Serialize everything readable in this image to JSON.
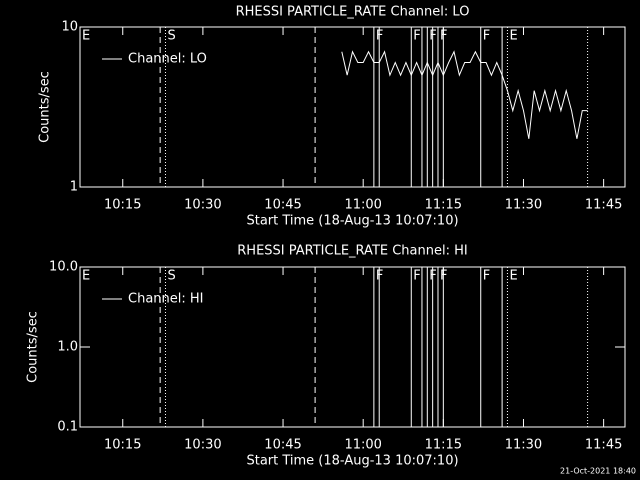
{
  "footer": "21-Oct-2021 18:40",
  "chart_data": [
    {
      "type": "line",
      "title": "RHESSI PARTICLE_RATE Channel: LO",
      "x_label": "Start Time (18-Aug-13 10:07:10)",
      "y_label": "Counts/sec",
      "log_y": true,
      "legend": "top-left",
      "xlim": [
        "10:07",
        "11:49"
      ],
      "xticks": [
        "10:15",
        "10:30",
        "10:45",
        "11:00",
        "11:15",
        "11:30",
        "11:45"
      ],
      "ylim": [
        1,
        10
      ],
      "yticks": [
        1,
        10
      ],
      "x": [
        "10:56",
        "10:57",
        "10:58",
        "10:59",
        "11:00",
        "11:01",
        "11:02",
        "11:03",
        "11:04",
        "11:05",
        "11:06",
        "11:07",
        "11:08",
        "11:09",
        "11:10",
        "11:11",
        "11:12",
        "11:13",
        "11:14",
        "11:15",
        "11:16",
        "11:17",
        "11:18",
        "11:19",
        "11:20",
        "11:21",
        "11:22",
        "11:23",
        "11:24",
        "11:25",
        "11:26",
        "11:27",
        "11:28",
        "11:29",
        "11:30",
        "11:31",
        "11:32",
        "11:33",
        "11:34",
        "11:35",
        "11:36",
        "11:37",
        "11:38",
        "11:39",
        "11:40",
        "11:41",
        "11:42"
      ],
      "series": [
        {
          "name": "Channel: LO",
          "color": "#ffffff",
          "values": [
            7,
            5,
            7,
            6,
            6,
            7,
            6,
            6,
            7,
            5,
            6,
            5,
            6,
            5,
            6,
            5,
            6,
            5,
            6,
            5,
            6,
            7,
            5,
            6,
            6,
            7,
            6,
            6,
            5,
            6,
            5,
            4,
            3,
            4,
            3,
            2,
            4,
            3,
            4,
            3,
            4,
            3,
            4,
            3,
            2,
            3,
            3
          ]
        }
      ],
      "events": [
        {
          "time": "10:07",
          "style": "none",
          "label": "E"
        },
        {
          "time": "10:22",
          "style": "dashed"
        },
        {
          "time": "10:23",
          "style": "dotted",
          "label": "S"
        },
        {
          "time": "10:51",
          "style": "dashed"
        },
        {
          "time": "11:02",
          "style": "solid",
          "label": "F"
        },
        {
          "time": "11:03",
          "style": "solid"
        },
        {
          "time": "11:09",
          "style": "solid",
          "label": "F"
        },
        {
          "time": "11:11",
          "style": "solid"
        },
        {
          "time": "11:12",
          "style": "solid",
          "label": "F"
        },
        {
          "time": "11:13",
          "style": "solid"
        },
        {
          "time": "11:14",
          "style": "solid",
          "label": "F"
        },
        {
          "time": "11:15",
          "style": "solid"
        },
        {
          "time": "11:22",
          "style": "solid",
          "label": "F"
        },
        {
          "time": "11:26",
          "style": "solid"
        },
        {
          "time": "11:27",
          "style": "dotted",
          "label": "E"
        },
        {
          "time": "11:42",
          "style": "dotted"
        }
      ]
    },
    {
      "type": "line",
      "title": "RHESSI PARTICLE_RATE Channel: HI",
      "x_label": "Start Time (18-Aug-13 10:07:10)",
      "y_label": "Counts/sec",
      "log_y": true,
      "legend": "top-left",
      "xlim": [
        "10:07",
        "11:49"
      ],
      "xticks": [
        "10:15",
        "10:30",
        "10:45",
        "11:00",
        "11:15",
        "11:30",
        "11:45"
      ],
      "ylim": [
        0.1,
        10
      ],
      "yticks": [
        0.1,
        {
          "value": 1,
          "label": "1.0"
        },
        {
          "value": 10,
          "label": "10.0"
        }
      ],
      "x": [],
      "series": [
        {
          "name": "Channel: HI",
          "color": "#ffffff",
          "values": []
        }
      ],
      "events": [
        {
          "time": "10:07",
          "style": "none",
          "label": "E"
        },
        {
          "time": "10:22",
          "style": "dashed"
        },
        {
          "time": "10:23",
          "style": "dotted",
          "label": "S"
        },
        {
          "time": "10:51",
          "style": "dashed"
        },
        {
          "time": "11:02",
          "style": "solid",
          "label": "F"
        },
        {
          "time": "11:03",
          "style": "solid"
        },
        {
          "time": "11:09",
          "style": "solid",
          "label": "F"
        },
        {
          "time": "11:11",
          "style": "solid"
        },
        {
          "time": "11:12",
          "style": "solid",
          "label": "F"
        },
        {
          "time": "11:13",
          "style": "solid"
        },
        {
          "time": "11:14",
          "style": "solid",
          "label": "F"
        },
        {
          "time": "11:15",
          "style": "solid"
        },
        {
          "time": "11:22",
          "style": "solid",
          "label": "F"
        },
        {
          "time": "11:26",
          "style": "solid"
        },
        {
          "time": "11:27",
          "style": "dotted",
          "label": "E"
        },
        {
          "time": "11:42",
          "style": "dotted"
        }
      ]
    }
  ]
}
